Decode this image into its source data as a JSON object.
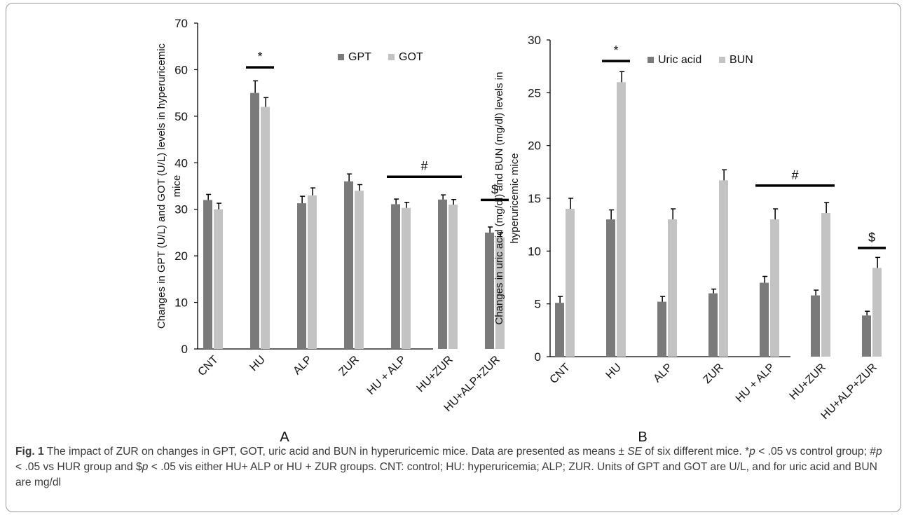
{
  "colors": {
    "dark_series": "#7a7a7a",
    "light_series": "#c3c3c3",
    "axis": "#000000"
  },
  "chart_data": [
    {
      "type": "bar",
      "panel_label": "A",
      "categories": [
        "CNT",
        "HU",
        "ALP",
        "ZUR",
        "HU + ALP",
        "HU+ZUR",
        "HU+ALP+ZUR"
      ],
      "ylabel": [
        "Changes in GPT (U/L) and GOT (U/L) levels in hyperuricemic",
        "mice"
      ],
      "ylim": [
        0,
        70
      ],
      "yticks": [
        0,
        10,
        20,
        30,
        40,
        50,
        60,
        70
      ],
      "legend_position": "top-right",
      "series": [
        {
          "name": "GPT",
          "color": "#7a7a7a",
          "values": [
            32,
            55,
            31.3,
            36,
            31.1,
            32.1,
            25
          ],
          "errors": [
            1.2,
            2.6,
            1.5,
            1.6,
            1.1,
            1.0,
            1.2
          ]
        },
        {
          "name": "GOT",
          "color": "#c3c3c3",
          "values": [
            30,
            52,
            33,
            34,
            30.3,
            31,
            24
          ],
          "errors": [
            1.3,
            2.0,
            1.6,
            1.3,
            1.2,
            1.1,
            1.0
          ]
        }
      ],
      "annotations": [
        {
          "text": "*",
          "from": 1,
          "to": 1,
          "y": 60.5
        },
        {
          "text": "#",
          "from": 4,
          "to": 5,
          "y": 37
        },
        {
          "text": "$",
          "from": 6,
          "to": 6,
          "y": 32
        }
      ]
    },
    {
      "type": "bar",
      "panel_label": "B",
      "categories": [
        "CNT",
        "HU",
        "ALP",
        "ZUR",
        "HU + ALP",
        "HU+ZUR",
        "HU+ALP+ZUR"
      ],
      "ylabel": [
        "Changes in uric acid (mg/dl) and BUN (mg/dl) levels in",
        "hyperuricemic mice"
      ],
      "ylim": [
        0,
        30
      ],
      "yticks": [
        0,
        5,
        10,
        15,
        20,
        25,
        30
      ],
      "legend_position": "top-right",
      "series": [
        {
          "name": "Uric acid",
          "color": "#7a7a7a",
          "values": [
            5.1,
            13,
            5.2,
            6,
            7,
            5.8,
            3.9
          ],
          "errors": [
            0.6,
            0.9,
            0.5,
            0.4,
            0.6,
            0.5,
            0.4
          ]
        },
        {
          "name": "BUN",
          "color": "#c3c3c3",
          "values": [
            14,
            26,
            13,
            16.7,
            13,
            13.6,
            8.4
          ],
          "errors": [
            1.0,
            1.0,
            1.0,
            1.0,
            1.0,
            1.0,
            1.0
          ]
        }
      ],
      "annotations": [
        {
          "text": "*",
          "from": 1,
          "to": 1,
          "y": 28
        },
        {
          "text": "#",
          "from": 4,
          "to": 5,
          "y": 16.2
        },
        {
          "text": "$",
          "from": 6,
          "to": 6,
          "y": 10.3
        }
      ]
    }
  ],
  "caption": {
    "label": "Fig. 1",
    "seg1": " The impact of ZUR on changes in GPT, GOT, uric acid and BUN in hyperuricemic mice. Data are presented as means ± ",
    "se": "SE",
    "seg2": " of six different mice. *",
    "p1": "p",
    "seg3": " < .05 vs control group; #",
    "p2": "p",
    "seg4": " < .05 vs HUR group and $",
    "p3": "p",
    "seg5": " < .05 vis either HU+ ALP or HU + ZUR groups. CNT: control; HU: hyperuricemia; ALP; ZUR. Units of GPT and GOT are U/L, and for uric acid and BUN are mg/dl"
  }
}
